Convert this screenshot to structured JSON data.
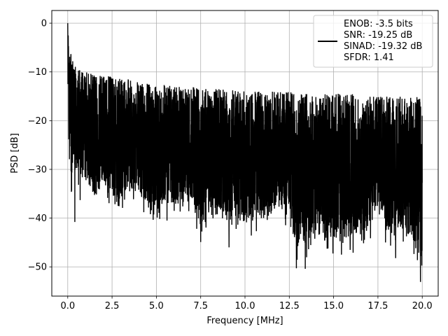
{
  "chart_data": {
    "type": "line",
    "title": "",
    "xlabel": "Frequency [MHz]",
    "ylabel": "PSD [dB]",
    "xlim": [
      -0.9,
      20.9
    ],
    "ylim": [
      -56,
      2.6
    ],
    "x_ticks": [
      0.0,
      2.5,
      5.0,
      7.5,
      10.0,
      12.5,
      15.0,
      17.5,
      20.0
    ],
    "x_tick_labels": [
      "0.0",
      "2.5",
      "5.0",
      "7.5",
      "10.0",
      "12.5",
      "15.0",
      "17.5",
      "20.0"
    ],
    "y_ticks": [
      0,
      -10,
      -20,
      -30,
      -40,
      -50
    ],
    "y_tick_labels": [
      "0",
      "−10",
      "−20",
      "−30",
      "−40",
      "−50"
    ],
    "grid": true,
    "legend_position": "top-right",
    "legend": [
      "ENOB: -3.5 bits",
      "SNR: -19.25 dB",
      "SINAD: -19.32 dB",
      "SFDR: 1.41"
    ],
    "series": [
      {
        "color": "#000000",
        "x_range": [
          0,
          20
        ],
        "x": [
          0.0,
          0.05,
          0.1,
          0.15,
          0.2,
          0.3,
          0.4,
          0.5,
          0.7,
          1.0,
          1.5,
          2.0,
          2.5,
          3.0,
          3.5,
          4.0,
          4.5,
          5.0,
          5.5,
          6.0,
          7.0,
          7.5,
          8.0,
          9.0,
          10.0,
          11.0,
          12.0,
          12.5,
          13.0,
          13.5,
          14.0,
          15.0,
          16.0,
          17.0,
          17.5,
          18.0,
          19.0,
          19.5,
          20.0
        ],
        "upper": [
          0.0,
          -3.0,
          -5.0,
          -6.0,
          -6.5,
          -7.0,
          -8.0,
          -9.0,
          -9.5,
          -10.0,
          -10.5,
          -10.5,
          -11.0,
          -11.5,
          -11.5,
          -12.0,
          -12.0,
          -12.5,
          -12.5,
          -13.0,
          -13.0,
          -13.5,
          -13.5,
          -13.5,
          -14.0,
          -14.0,
          -14.0,
          -14.0,
          -14.5,
          -14.5,
          -14.5,
          -14.5,
          -14.5,
          -15.0,
          -15.0,
          -15.0,
          -15.0,
          -15.0,
          -15.0
        ],
        "lower": [
          -20.0,
          -31.0,
          -28.0,
          -26.0,
          -41.0,
          -32.0,
          -34.0,
          -33.0,
          -36.0,
          -33.0,
          -39.0,
          -35.0,
          -38.0,
          -39.0,
          -36.0,
          -38.0,
          -40.0,
          -41.0,
          -39.0,
          -40.0,
          -39.0,
          -45.0,
          -40.0,
          -42.0,
          -44.0,
          -43.0,
          -40.0,
          -44.0,
          -50.0,
          -48.0,
          -44.0,
          -48.0,
          -47.0,
          -45.0,
          -40.0,
          -46.0,
          -45.0,
          -48.0,
          -53.0
        ],
        "deep_dips": [
          {
            "x": 0.4,
            "y": -40.8
          },
          {
            "x": 0.7,
            "y": -36.3
          },
          {
            "x": 5.6,
            "y": -40.5
          },
          {
            "x": 7.5,
            "y": -44.9
          },
          {
            "x": 9.1,
            "y": -46.0
          },
          {
            "x": 12.9,
            "y": -50.3
          },
          {
            "x": 13.4,
            "y": -50.4
          },
          {
            "x": 14.5,
            "y": -44.6
          },
          {
            "x": 16.1,
            "y": -47.1
          },
          {
            "x": 18.5,
            "y": -48.2
          },
          {
            "x": 19.9,
            "y": -53.1
          }
        ]
      }
    ]
  }
}
